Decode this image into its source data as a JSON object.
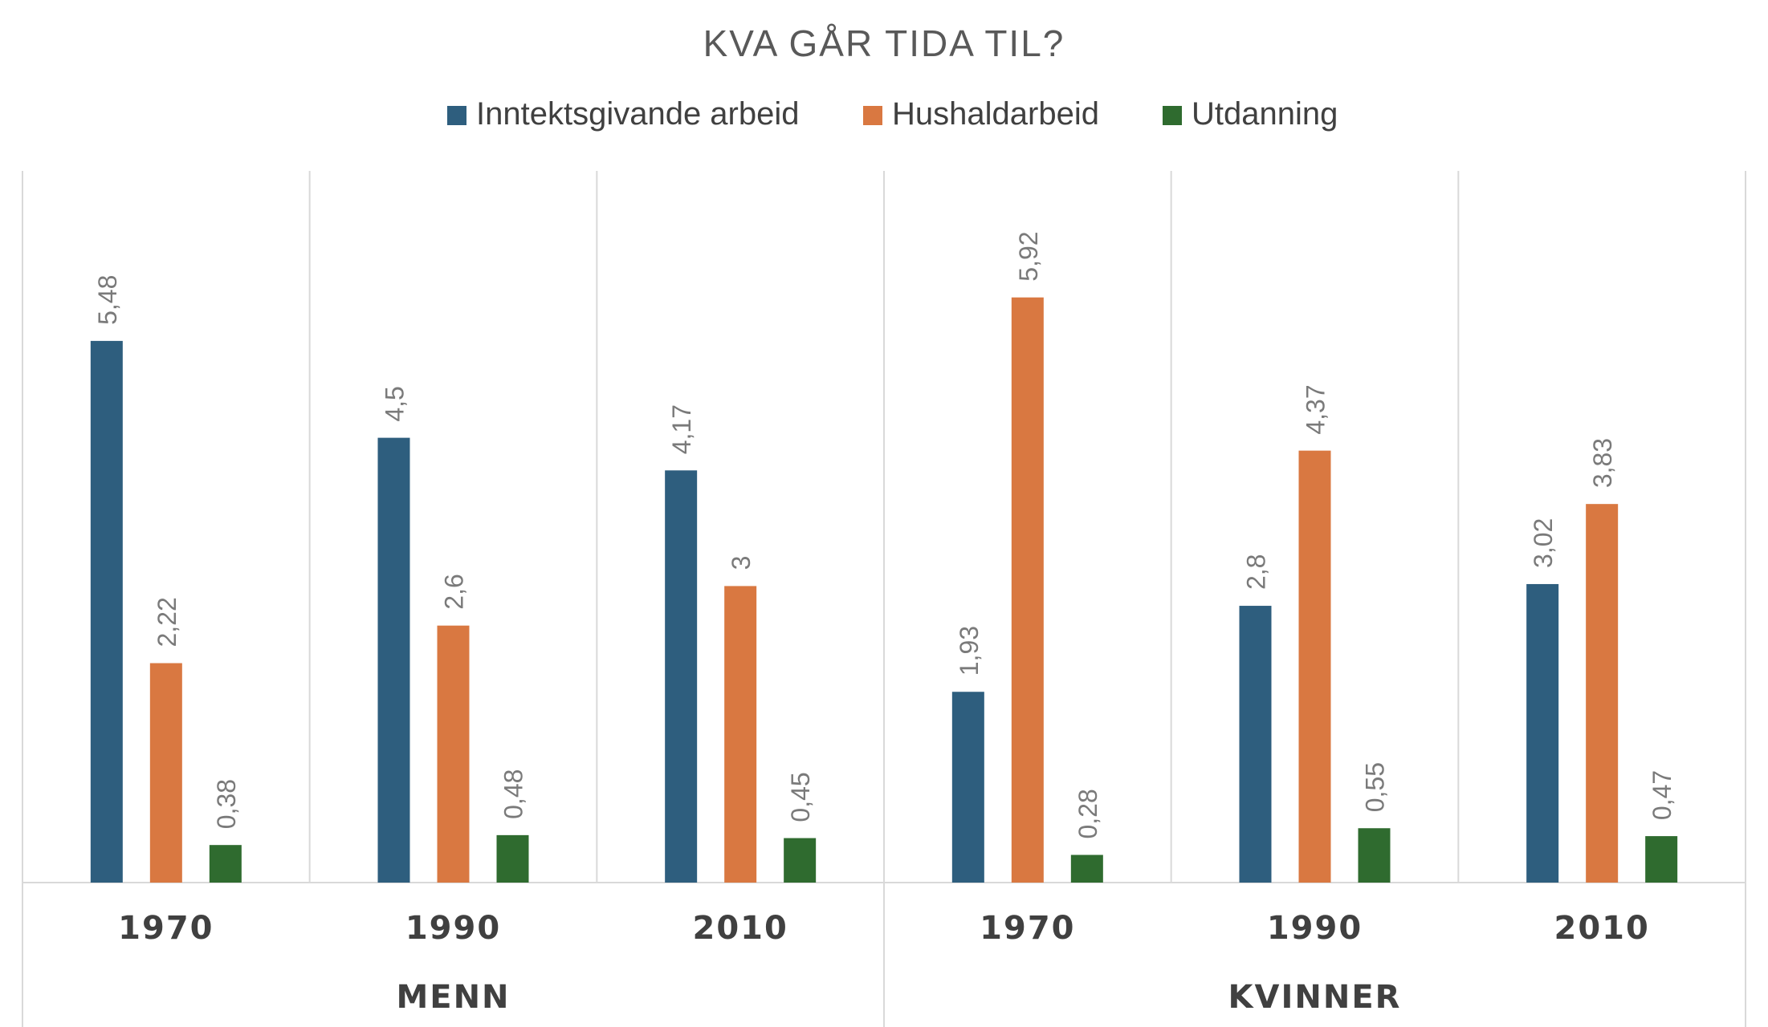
{
  "chart_data": {
    "type": "bar",
    "title": "KVA GÅR TIDA TIL?",
    "legend_position": "top",
    "groups": [
      {
        "label": "MENN",
        "categories": [
          "1970",
          "1990",
          "2010"
        ]
      },
      {
        "label": "KVINNER",
        "categories": [
          "1970",
          "1990",
          "2010"
        ]
      }
    ],
    "categories": [
      "1970",
      "1990",
      "2010",
      "1970",
      "1990",
      "2010"
    ],
    "series": [
      {
        "name": "Inntektsgivande arbeid",
        "color": "#2e5e7e",
        "values": [
          5.48,
          4.5,
          4.17,
          1.93,
          2.8,
          3.02
        ],
        "labels": [
          "5,48",
          "4,5",
          "4,17",
          "1,93",
          "2,8",
          "3,02"
        ]
      },
      {
        "name": "Hushaldarbeid",
        "color": "#d97841",
        "values": [
          2.22,
          2.6,
          3,
          5.92,
          4.37,
          3.83
        ],
        "labels": [
          "2,22",
          "2,6",
          "3",
          "5,92",
          "4,37",
          "3,83"
        ]
      },
      {
        "name": "Utdanning",
        "color": "#2f6b2f",
        "values": [
          0.38,
          0.48,
          0.45,
          0.28,
          0.55,
          0.47
        ],
        "labels": [
          "0,38",
          "0,48",
          "0,45",
          "0,28",
          "0,55",
          "0,47"
        ]
      }
    ],
    "ylim": [
      0,
      7.2
    ],
    "grid": false
  }
}
